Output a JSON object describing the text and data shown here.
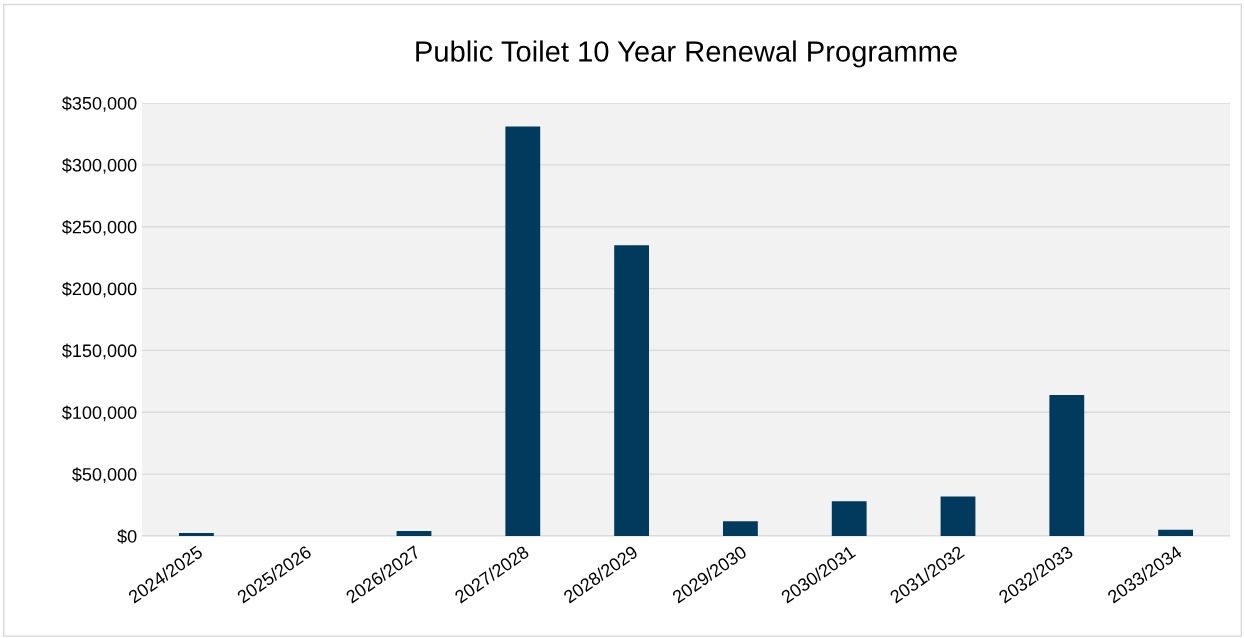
{
  "chart_data": {
    "type": "bar",
    "title": "Public Toilet 10 Year Renewal Programme",
    "categories": [
      "2024/2025",
      "2025/2026",
      "2026/2027",
      "2027/2028",
      "2028/2029",
      "2029/2030",
      "2030/2031",
      "2031/2032",
      "2032/2033",
      "2033/2034"
    ],
    "values": [
      2500,
      0,
      4000,
      331000,
      235000,
      12000,
      28000,
      32000,
      114000,
      5000
    ],
    "color": "#003a5d",
    "ylim": [
      0,
      350000
    ],
    "yticks": [
      {
        "value": 0,
        "label": "$0"
      },
      {
        "value": 50000,
        "label": "$50,000"
      },
      {
        "value": 100000,
        "label": "$100,000"
      },
      {
        "value": 150000,
        "label": "$150,000"
      },
      {
        "value": 200000,
        "label": "$200,000"
      },
      {
        "value": 250000,
        "label": "$250,000"
      },
      {
        "value": 300000,
        "label": "$300,000"
      },
      {
        "value": 350000,
        "label": "$350,000"
      }
    ],
    "grid": "y"
  }
}
